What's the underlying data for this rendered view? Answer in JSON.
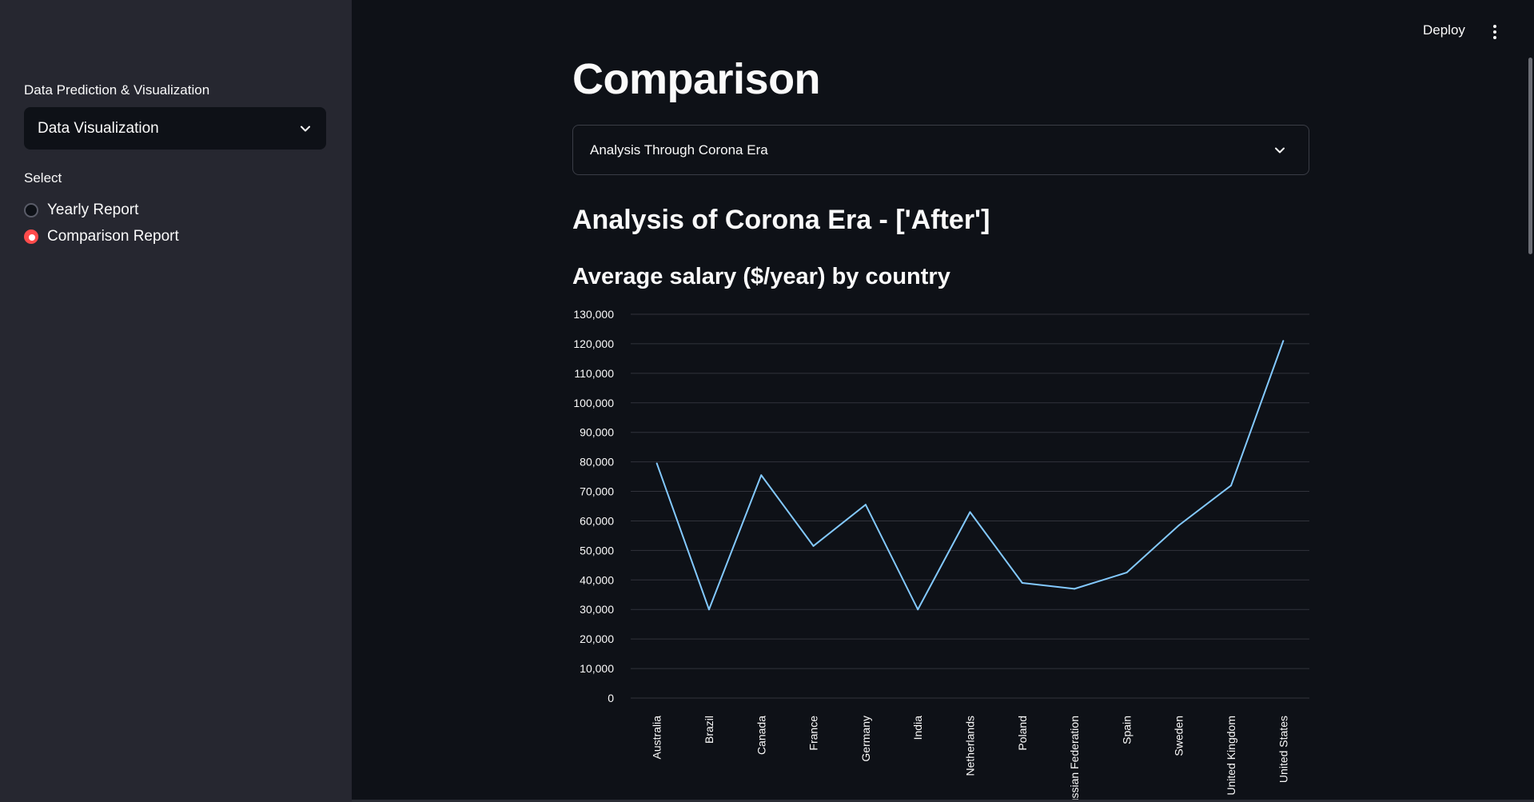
{
  "sidebar": {
    "select_label": "Data Prediction & Visualization",
    "select_value": "Data Visualization",
    "radio_label": "Select",
    "radio_options": [
      {
        "label": "Yearly Report",
        "checked": false
      },
      {
        "label": "Comparison Report",
        "checked": true
      }
    ]
  },
  "header": {
    "deploy_label": "Deploy",
    "menu_icon": "kebab-menu-icon"
  },
  "main": {
    "title": "Comparison",
    "select_value": "Analysis Through Corona Era",
    "subheader": "Analysis of Corona Era - ['After']",
    "chart_title": "Average salary ($/year) by country"
  },
  "colors": {
    "accent": "#ff4b4b",
    "line": "#83c9ff",
    "background": "#0e1117",
    "sidebar": "#262730"
  },
  "chart_data": {
    "type": "line",
    "title": "Average salary ($/year) by country",
    "xlabel": "",
    "ylabel": "",
    "ylim": [
      0,
      130000
    ],
    "yticks": [
      0,
      10000,
      20000,
      30000,
      40000,
      50000,
      60000,
      70000,
      80000,
      90000,
      100000,
      110000,
      120000,
      130000
    ],
    "ytick_labels": [
      "0",
      "10,000",
      "20,000",
      "30,000",
      "40,000",
      "50,000",
      "60,000",
      "70,000",
      "80,000",
      "90,000",
      "100,000",
      "110,000",
      "120,000",
      "130,000"
    ],
    "categories": [
      "Australia",
      "Brazil",
      "Canada",
      "France",
      "Germany",
      "India",
      "Netherlands",
      "Poland",
      "Russian Federation",
      "Spain",
      "Sweden",
      "United Kingdom",
      "United States"
    ],
    "values": [
      79500,
      30000,
      75500,
      51500,
      65500,
      30000,
      63000,
      39000,
      37000,
      42500,
      58500,
      72000,
      121000
    ],
    "grid": true,
    "legend": "none"
  }
}
